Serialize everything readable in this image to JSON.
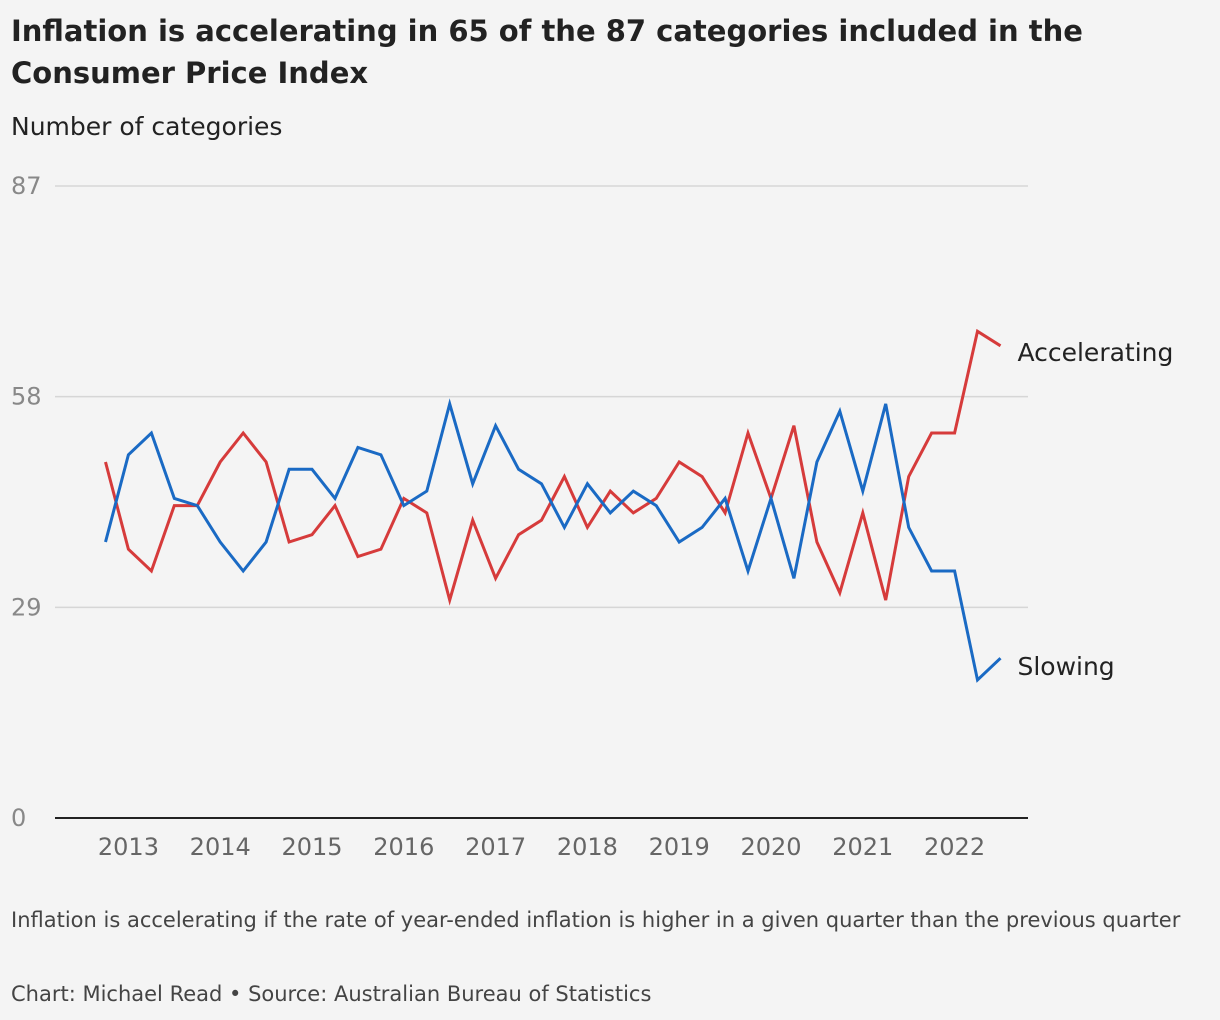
{
  "title": "Inflation is accelerating in 65 of the 87 categories included in the Consumer Price Index",
  "subtitle": "Number of categories",
  "note": "Inflation is accelerating if the rate of year-ended inflation is higher in a given quarter than the previous quarter",
  "credit": "Chart: Michael Read • Source: Australian Bureau of Statistics",
  "colors": {
    "accelerating": "#d63b3b",
    "slowing": "#1a6ac4",
    "grid": "#d6d6d6",
    "axis": "#222222",
    "tick_text": "#888888"
  },
  "chart_data": {
    "type": "line",
    "ylabel": "Number of categories",
    "ylim": [
      0,
      87
    ],
    "y_ticks": [
      "0",
      "29",
      "58",
      "87"
    ],
    "x_tick_labels": [
      "2013",
      "2014",
      "2015",
      "2016",
      "2017",
      "2018",
      "2019",
      "2020",
      "2021",
      "2022"
    ],
    "x_range_years": [
      2012.2,
      2022.8
    ],
    "grid": true,
    "series": [
      {
        "name": "Accelerating",
        "color": "#d63b3b",
        "x": [
          2012.75,
          2013.0,
          2013.25,
          2013.5,
          2013.75,
          2014.0,
          2014.25,
          2014.5,
          2014.75,
          2015.0,
          2015.25,
          2015.5,
          2015.75,
          2016.0,
          2016.25,
          2016.5,
          2016.75,
          2017.0,
          2017.25,
          2017.5,
          2017.75,
          2018.0,
          2018.25,
          2018.5,
          2018.75,
          2019.0,
          2019.25,
          2019.5,
          2019.75,
          2020.0,
          2020.25,
          2020.5,
          2020.75,
          2021.0,
          2021.25,
          2021.5,
          2021.75,
          2022.0,
          2022.25,
          2022.5
        ],
        "values": [
          49,
          37,
          34,
          43,
          43,
          49,
          53,
          49,
          38,
          39,
          43,
          36,
          37,
          44,
          42,
          30,
          41,
          33,
          39,
          41,
          47,
          40,
          45,
          42,
          44,
          49,
          47,
          42,
          53,
          44,
          54,
          38,
          31,
          42,
          30,
          47,
          53,
          53,
          67,
          65
        ]
      },
      {
        "name": "Slowing",
        "color": "#1a6ac4",
        "x": [
          2012.75,
          2013.0,
          2013.25,
          2013.5,
          2013.75,
          2014.0,
          2014.25,
          2014.5,
          2014.75,
          2015.0,
          2015.25,
          2015.5,
          2015.75,
          2016.0,
          2016.25,
          2016.5,
          2016.75,
          2017.0,
          2017.25,
          2017.5,
          2017.75,
          2018.0,
          2018.25,
          2018.5,
          2018.75,
          2019.0,
          2019.25,
          2019.5,
          2019.75,
          2020.0,
          2020.25,
          2020.5,
          2020.75,
          2021.0,
          2021.25,
          2021.5,
          2021.75,
          2022.0,
          2022.25,
          2022.5
        ],
        "values": [
          38,
          50,
          53,
          44,
          43,
          38,
          34,
          38,
          48,
          48,
          44,
          51,
          50,
          43,
          45,
          57,
          46,
          54,
          48,
          46,
          40,
          46,
          42,
          45,
          43,
          38,
          40,
          44,
          34,
          44,
          33,
          49,
          56,
          45,
          57,
          40,
          34,
          34,
          19,
          22
        ]
      }
    ]
  }
}
